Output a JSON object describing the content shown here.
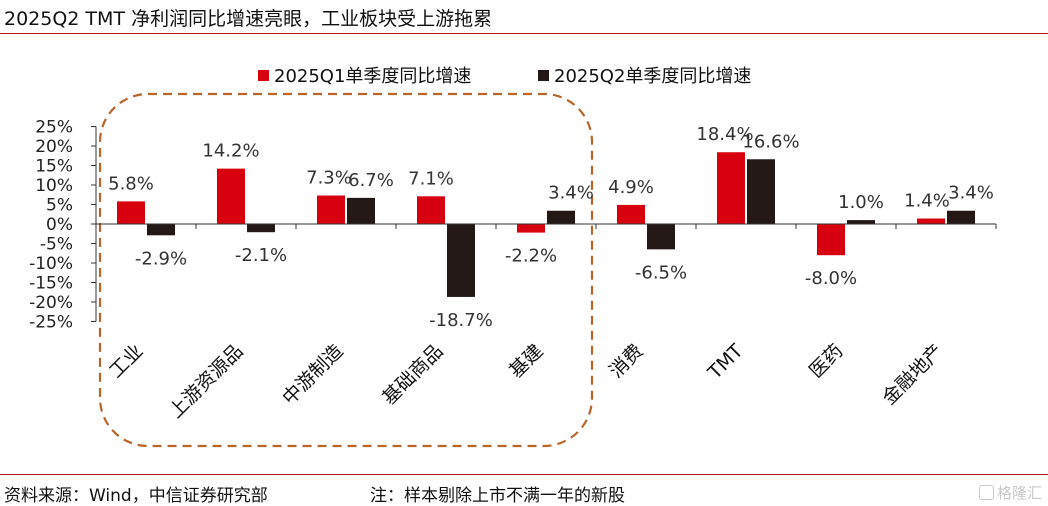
{
  "title": "2025Q2 TMT 净利润同比增速亮眼，工业板块受上游拖累",
  "source": "资料来源：Wind，中信证券研究部",
  "note": "注：样本剔除上市不满一年的新股",
  "watermark": "格隆汇",
  "colors": {
    "q1": "#d7000f",
    "q2": "#231815",
    "highlight_box": "#b8652a",
    "rule": "#b5121b"
  },
  "chart_data": {
    "type": "bar",
    "categories": [
      "工业",
      "上游资源品",
      "中游制造",
      "基础商品",
      "基建",
      "消费",
      "TMT",
      "医药",
      "金融地产"
    ],
    "series": [
      {
        "name": "2025Q1单季度同比增速",
        "values": [
          5.8,
          14.2,
          7.3,
          7.1,
          -2.2,
          4.9,
          18.4,
          -8.0,
          1.4
        ],
        "labels": [
          "5.8%",
          "14.2%",
          "7.3%",
          "7.1%",
          "-2.2%",
          "4.9%",
          "18.4%",
          "-8.0%",
          "1.4%"
        ]
      },
      {
        "name": "2025Q2单季度同比增速",
        "values": [
          -2.9,
          -2.1,
          6.7,
          -18.7,
          3.4,
          -6.5,
          16.6,
          1.0,
          3.4
        ],
        "labels": [
          "-2.9%",
          "-2.1%",
          "6.7%",
          "-18.7%",
          "3.4%",
          "-6.5%",
          "16.6%",
          "1.0%",
          "3.4%"
        ]
      }
    ],
    "y_ticks": [
      "25%",
      "20%",
      "15%",
      "10%",
      "5%",
      "0%",
      "-5%",
      "-10%",
      "-15%",
      "-20%",
      "-25%"
    ],
    "ylim": [
      -25,
      25
    ],
    "legend_position": "top-center",
    "grid": false,
    "highlight_group": [
      "工业",
      "上游资源品",
      "中游制造",
      "基础商品",
      "基建"
    ]
  }
}
